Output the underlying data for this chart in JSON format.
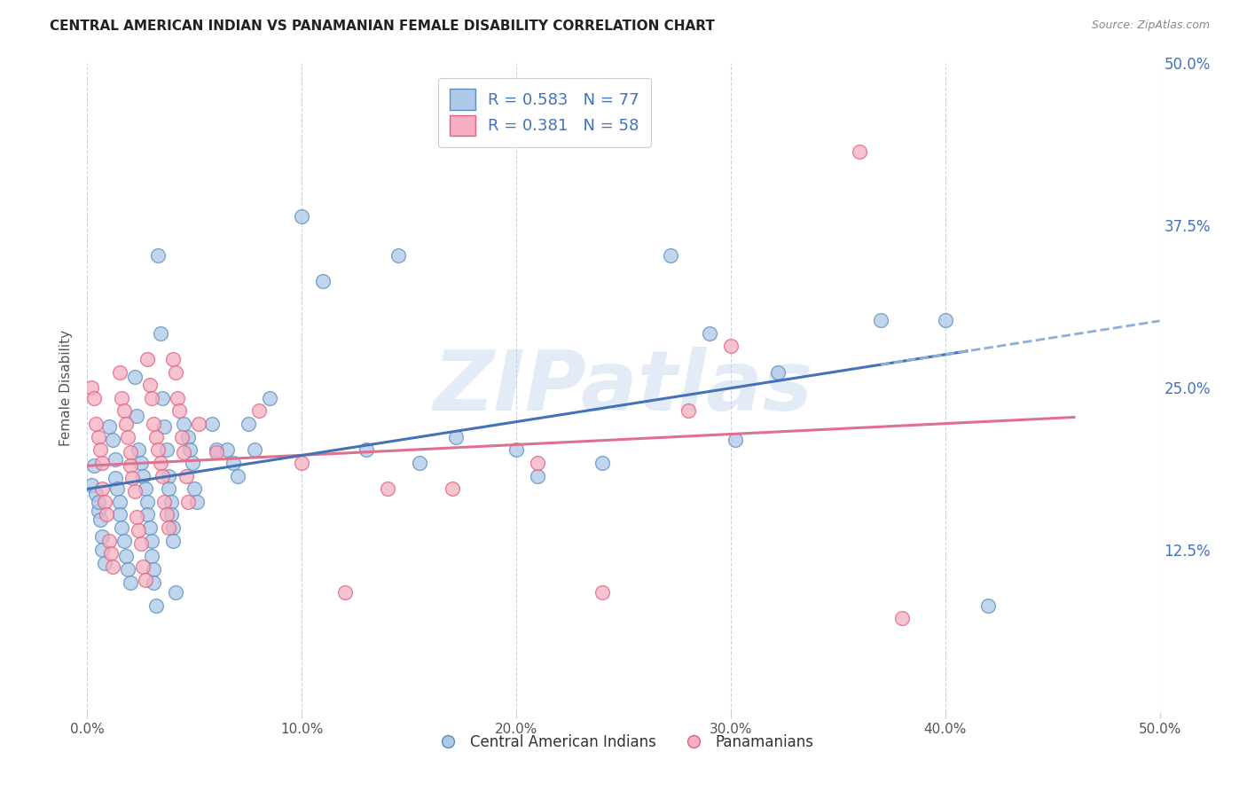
{
  "title": "CENTRAL AMERICAN INDIAN VS PANAMANIAN FEMALE DISABILITY CORRELATION CHART",
  "source": "Source: ZipAtlas.com",
  "ylabel": "Female Disability",
  "xlim": [
    0,
    0.5
  ],
  "ylim": [
    0,
    0.5
  ],
  "xticks": [
    0.0,
    0.1,
    0.2,
    0.3,
    0.4,
    0.5
  ],
  "yticks": [
    0.125,
    0.25,
    0.375,
    0.5
  ],
  "blue_R": 0.583,
  "blue_N": 77,
  "pink_R": 0.381,
  "pink_N": 58,
  "blue_color": "#adc8e8",
  "pink_color": "#f5afc0",
  "blue_edge_color": "#5a8fc0",
  "pink_edge_color": "#e06080",
  "blue_line_color": "#4472b8",
  "pink_line_color": "#e07090",
  "blue_dashed_line_color": "#8ab0d8",
  "title_color": "#222222",
  "source_color": "#888888",
  "right_axis_color": "#4472b8",
  "grid_color": "#c8d4e0",
  "watermark_color": "#c0d4ec",
  "background_color": "#ffffff",
  "blue_scatter": [
    [
      0.002,
      0.175
    ],
    [
      0.003,
      0.19
    ],
    [
      0.004,
      0.168
    ],
    [
      0.005,
      0.155
    ],
    [
      0.005,
      0.162
    ],
    [
      0.006,
      0.148
    ],
    [
      0.007,
      0.135
    ],
    [
      0.007,
      0.125
    ],
    [
      0.008,
      0.115
    ],
    [
      0.01,
      0.22
    ],
    [
      0.012,
      0.21
    ],
    [
      0.013,
      0.195
    ],
    [
      0.013,
      0.18
    ],
    [
      0.014,
      0.172
    ],
    [
      0.015,
      0.162
    ],
    [
      0.015,
      0.152
    ],
    [
      0.016,
      0.142
    ],
    [
      0.017,
      0.132
    ],
    [
      0.018,
      0.12
    ],
    [
      0.019,
      0.11
    ],
    [
      0.02,
      0.1
    ],
    [
      0.022,
      0.258
    ],
    [
      0.023,
      0.228
    ],
    [
      0.024,
      0.202
    ],
    [
      0.025,
      0.192
    ],
    [
      0.026,
      0.182
    ],
    [
      0.027,
      0.172
    ],
    [
      0.028,
      0.162
    ],
    [
      0.028,
      0.152
    ],
    [
      0.029,
      0.142
    ],
    [
      0.03,
      0.132
    ],
    [
      0.03,
      0.12
    ],
    [
      0.031,
      0.11
    ],
    [
      0.031,
      0.1
    ],
    [
      0.032,
      0.082
    ],
    [
      0.033,
      0.352
    ],
    [
      0.034,
      0.292
    ],
    [
      0.035,
      0.242
    ],
    [
      0.036,
      0.22
    ],
    [
      0.037,
      0.202
    ],
    [
      0.038,
      0.182
    ],
    [
      0.038,
      0.172
    ],
    [
      0.039,
      0.162
    ],
    [
      0.039,
      0.152
    ],
    [
      0.04,
      0.142
    ],
    [
      0.04,
      0.132
    ],
    [
      0.041,
      0.092
    ],
    [
      0.045,
      0.222
    ],
    [
      0.047,
      0.212
    ],
    [
      0.048,
      0.202
    ],
    [
      0.049,
      0.192
    ],
    [
      0.05,
      0.172
    ],
    [
      0.051,
      0.162
    ],
    [
      0.058,
      0.222
    ],
    [
      0.06,
      0.202
    ],
    [
      0.065,
      0.202
    ],
    [
      0.068,
      0.192
    ],
    [
      0.07,
      0.182
    ],
    [
      0.075,
      0.222
    ],
    [
      0.078,
      0.202
    ],
    [
      0.085,
      0.242
    ],
    [
      0.1,
      0.382
    ],
    [
      0.11,
      0.332
    ],
    [
      0.13,
      0.202
    ],
    [
      0.145,
      0.352
    ],
    [
      0.155,
      0.192
    ],
    [
      0.172,
      0.212
    ],
    [
      0.2,
      0.202
    ],
    [
      0.21,
      0.182
    ],
    [
      0.24,
      0.192
    ],
    [
      0.272,
      0.352
    ],
    [
      0.29,
      0.292
    ],
    [
      0.302,
      0.21
    ],
    [
      0.322,
      0.262
    ],
    [
      0.37,
      0.302
    ],
    [
      0.4,
      0.302
    ],
    [
      0.42,
      0.082
    ]
  ],
  "pink_scatter": [
    [
      0.002,
      0.25
    ],
    [
      0.003,
      0.242
    ],
    [
      0.004,
      0.222
    ],
    [
      0.005,
      0.212
    ],
    [
      0.006,
      0.202
    ],
    [
      0.007,
      0.192
    ],
    [
      0.007,
      0.172
    ],
    [
      0.008,
      0.162
    ],
    [
      0.009,
      0.152
    ],
    [
      0.01,
      0.132
    ],
    [
      0.011,
      0.122
    ],
    [
      0.012,
      0.112
    ],
    [
      0.015,
      0.262
    ],
    [
      0.016,
      0.242
    ],
    [
      0.017,
      0.232
    ],
    [
      0.018,
      0.222
    ],
    [
      0.019,
      0.212
    ],
    [
      0.02,
      0.2
    ],
    [
      0.02,
      0.19
    ],
    [
      0.021,
      0.18
    ],
    [
      0.022,
      0.17
    ],
    [
      0.023,
      0.15
    ],
    [
      0.024,
      0.14
    ],
    [
      0.025,
      0.13
    ],
    [
      0.026,
      0.112
    ],
    [
      0.027,
      0.102
    ],
    [
      0.028,
      0.272
    ],
    [
      0.029,
      0.252
    ],
    [
      0.03,
      0.242
    ],
    [
      0.031,
      0.222
    ],
    [
      0.032,
      0.212
    ],
    [
      0.033,
      0.202
    ],
    [
      0.034,
      0.192
    ],
    [
      0.035,
      0.182
    ],
    [
      0.036,
      0.162
    ],
    [
      0.037,
      0.152
    ],
    [
      0.038,
      0.142
    ],
    [
      0.04,
      0.272
    ],
    [
      0.041,
      0.262
    ],
    [
      0.042,
      0.242
    ],
    [
      0.043,
      0.232
    ],
    [
      0.044,
      0.212
    ],
    [
      0.045,
      0.2
    ],
    [
      0.046,
      0.182
    ],
    [
      0.047,
      0.162
    ],
    [
      0.052,
      0.222
    ],
    [
      0.06,
      0.2
    ],
    [
      0.08,
      0.232
    ],
    [
      0.1,
      0.192
    ],
    [
      0.12,
      0.092
    ],
    [
      0.14,
      0.172
    ],
    [
      0.17,
      0.172
    ],
    [
      0.21,
      0.192
    ],
    [
      0.24,
      0.092
    ],
    [
      0.28,
      0.232
    ],
    [
      0.3,
      0.282
    ],
    [
      0.36,
      0.432
    ],
    [
      0.38,
      0.072
    ]
  ],
  "blue_line_solid_end": 0.41,
  "blue_line_dashed_start": 0.37,
  "watermark": "ZIPatlas"
}
